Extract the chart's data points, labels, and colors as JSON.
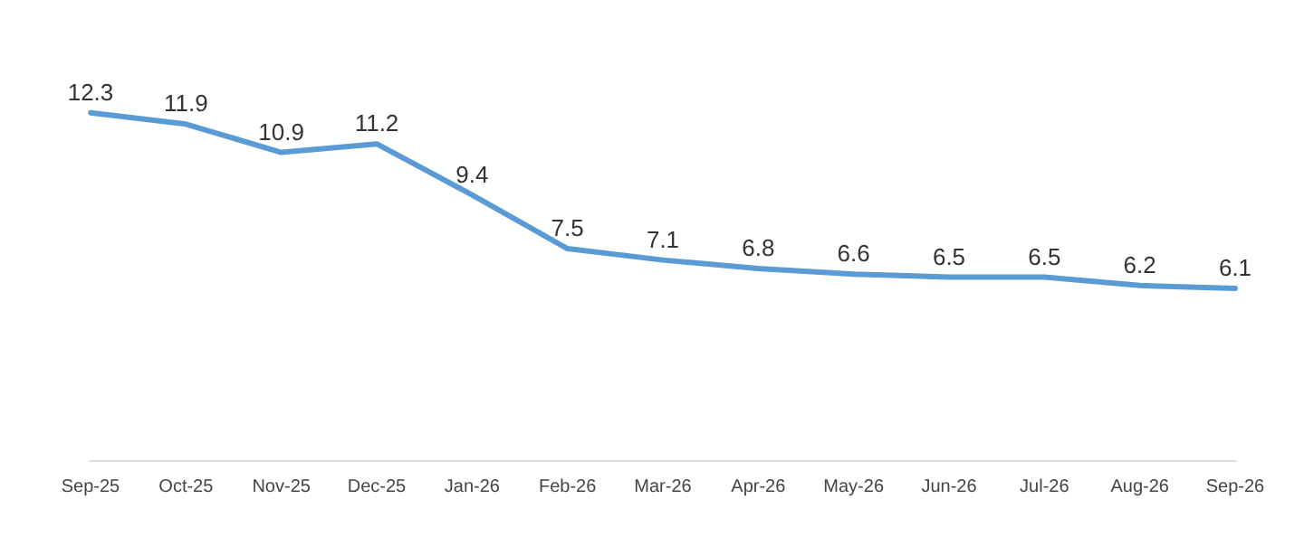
{
  "chart_data": {
    "type": "line",
    "categories": [
      "Sep-25",
      "Oct-25",
      "Nov-25",
      "Dec-25",
      "Jan-26",
      "Feb-26",
      "Mar-26",
      "Apr-26",
      "May-26",
      "Jun-26",
      "Jul-26",
      "Aug-26",
      "Sep-26"
    ],
    "series": [
      {
        "color": "#5b9bd5",
        "values": [
          12.3,
          11.9,
          10.9,
          11.2,
          9.4,
          7.5,
          7.1,
          6.8,
          6.6,
          6.5,
          6.5,
          6.2,
          6.1
        ]
      }
    ],
    "data_labels": true,
    "grid": false,
    "legend": false,
    "marker": "none",
    "line_style": "solid",
    "tick_labels": "x"
  }
}
